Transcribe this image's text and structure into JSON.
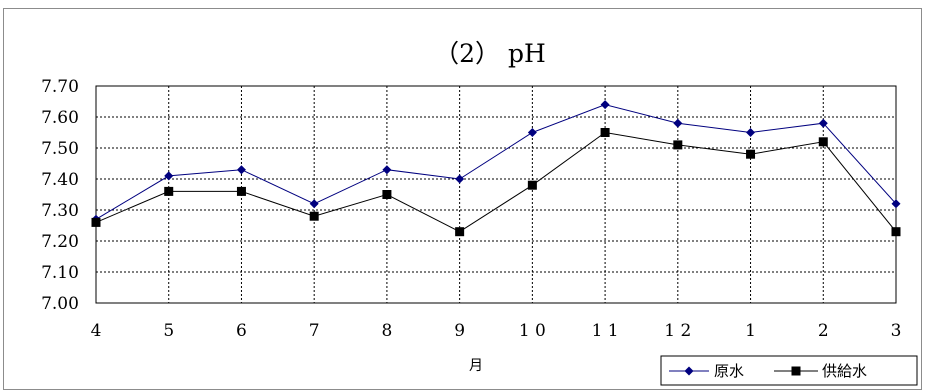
{
  "chart_data": {
    "type": "line",
    "title": "（2） pH",
    "xlabel": "月",
    "ylabel": "",
    "categories": [
      "4",
      "5",
      "6",
      "7",
      "8",
      "9",
      "1 0",
      "1 1",
      "1 2",
      "1",
      "2",
      "3"
    ],
    "y_ticks": [
      "7.00",
      "7.10",
      "7.20",
      "7.30",
      "7.40",
      "7.50",
      "7.60",
      "7.70"
    ],
    "ylim": [
      7.0,
      7.7
    ],
    "grid": true,
    "legend_position": "bottom-right",
    "series": [
      {
        "name": "原水",
        "color": "#00007f",
        "marker": "diamond",
        "values": [
          7.27,
          7.41,
          7.43,
          7.32,
          7.43,
          7.4,
          7.55,
          7.64,
          7.58,
          7.55,
          7.58,
          7.32
        ]
      },
      {
        "name": "供給水",
        "color": "#000000",
        "marker": "square",
        "values": [
          7.26,
          7.36,
          7.36,
          7.28,
          7.35,
          7.23,
          7.38,
          7.55,
          7.51,
          7.48,
          7.52,
          7.23
        ]
      }
    ]
  }
}
